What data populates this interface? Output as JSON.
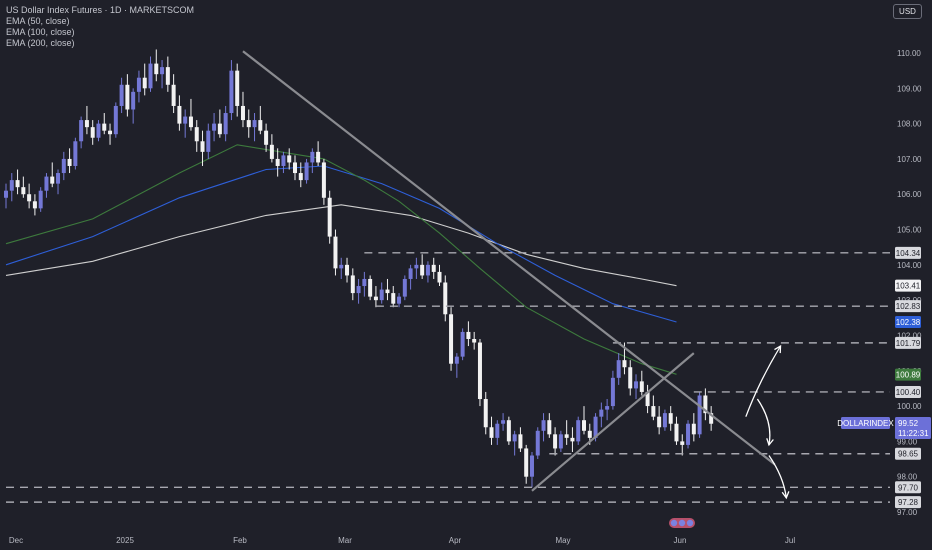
{
  "legend": {
    "title": "US Dollar Index Futures · 1D · MARKETSCOM",
    "ema50": "EMA (50, close)",
    "ema100": "EMA (100, close)",
    "ema200": "EMA (200, close)"
  },
  "currency": "USD",
  "colors": {
    "background": "#1f2029",
    "candle_up": "#7478d6",
    "candle_down": "#f2f2f2",
    "ema50": "#3d7a3d",
    "ema100": "#2e5fd8",
    "ema200": "#cfcfcf",
    "trendline": "#8a8b90",
    "level_line": "#a8a8b0",
    "arrow": "#ffffff"
  },
  "chart_data": {
    "type": "candlestick",
    "title": "US Dollar Index Futures · 1D · MARKETSCOM",
    "x_labels": [
      "Dec",
      "2025",
      "Feb",
      "Mar",
      "Apr",
      "May",
      "Jun",
      "Jul"
    ],
    "y_ticks": [
      110.0,
      109.0,
      108.0,
      107.0,
      106.0,
      105.0,
      104.0,
      103.0,
      102.0,
      101.0,
      100.0,
      99.0,
      98.0,
      97.0
    ],
    "y_tick_labels": [
      "110.00",
      "109.00",
      "108.00",
      "107.00",
      "106.00",
      "105.00",
      "104.00",
      "103.00",
      "102.00",
      "101.00",
      "100.00",
      "99.00",
      "98.00",
      "97.00"
    ],
    "ylim": [
      96.6,
      111.4
    ],
    "candles": [
      [
        105.9,
        106.3,
        105.6,
        106.1
      ],
      [
        106.1,
        106.6,
        105.8,
        106.4
      ],
      [
        106.4,
        106.7,
        106.0,
        106.2
      ],
      [
        106.2,
        106.5,
        105.9,
        106.0
      ],
      [
        106.0,
        106.3,
        105.6,
        105.8
      ],
      [
        105.8,
        106.0,
        105.4,
        105.6
      ],
      [
        105.6,
        106.2,
        105.5,
        106.1
      ],
      [
        106.1,
        106.6,
        105.9,
        106.5
      ],
      [
        106.5,
        106.9,
        106.2,
        106.3
      ],
      [
        106.3,
        106.7,
        106.0,
        106.6
      ],
      [
        106.6,
        107.2,
        106.4,
        107.0
      ],
      [
        107.0,
        107.3,
        106.6,
        106.8
      ],
      [
        106.8,
        107.6,
        106.7,
        107.5
      ],
      [
        107.5,
        108.2,
        107.3,
        108.1
      ],
      [
        108.1,
        108.5,
        107.7,
        107.9
      ],
      [
        107.9,
        108.1,
        107.4,
        107.6
      ],
      [
        107.6,
        108.1,
        107.5,
        108.0
      ],
      [
        108.0,
        108.3,
        107.7,
        107.8
      ],
      [
        107.8,
        108.0,
        107.4,
        107.7
      ],
      [
        107.7,
        108.6,
        107.6,
        108.5
      ],
      [
        108.5,
        109.3,
        108.3,
        109.1
      ],
      [
        109.1,
        109.4,
        108.2,
        108.4
      ],
      [
        108.4,
        109.0,
        108.0,
        108.9
      ],
      [
        108.9,
        109.5,
        108.6,
        109.3
      ],
      [
        109.3,
        109.7,
        108.8,
        109.0
      ],
      [
        109.0,
        109.9,
        108.9,
        109.7
      ],
      [
        109.7,
        110.1,
        109.2,
        109.4
      ],
      [
        109.4,
        109.8,
        109.0,
        109.6
      ],
      [
        109.6,
        109.9,
        108.9,
        109.1
      ],
      [
        109.1,
        109.4,
        108.3,
        108.5
      ],
      [
        108.5,
        108.8,
        107.8,
        108.0
      ],
      [
        108.0,
        108.4,
        107.6,
        108.2
      ],
      [
        108.2,
        108.7,
        107.8,
        107.9
      ],
      [
        107.9,
        108.1,
        107.2,
        107.5
      ],
      [
        107.5,
        107.8,
        106.8,
        107.2
      ],
      [
        107.2,
        108.0,
        107.0,
        107.8
      ],
      [
        107.8,
        108.3,
        107.5,
        108.0
      ],
      [
        108.0,
        108.4,
        107.6,
        107.7
      ],
      [
        107.7,
        108.5,
        107.5,
        108.3
      ],
      [
        108.3,
        109.8,
        108.1,
        109.5
      ],
      [
        109.5,
        109.7,
        108.2,
        108.5
      ],
      [
        108.5,
        108.9,
        107.9,
        108.1
      ],
      [
        108.1,
        108.4,
        107.6,
        107.9
      ],
      [
        107.9,
        108.3,
        107.5,
        108.1
      ],
      [
        108.1,
        108.5,
        107.7,
        107.8
      ],
      [
        107.8,
        108.0,
        107.2,
        107.4
      ],
      [
        107.4,
        107.7,
        106.9,
        107.0
      ],
      [
        107.0,
        107.3,
        106.5,
        106.8
      ],
      [
        106.8,
        107.2,
        106.6,
        107.1
      ],
      [
        107.1,
        107.3,
        106.7,
        106.9
      ],
      [
        106.9,
        107.1,
        106.4,
        106.6
      ],
      [
        106.6,
        106.9,
        106.2,
        106.4
      ],
      [
        106.4,
        107.0,
        106.3,
        106.9
      ],
      [
        106.9,
        107.3,
        106.6,
        107.2
      ],
      [
        107.2,
        107.5,
        106.8,
        106.9
      ],
      [
        106.9,
        107.0,
        105.7,
        105.9
      ],
      [
        105.9,
        106.1,
        104.6,
        104.8
      ],
      [
        104.8,
        105.0,
        103.7,
        103.9
      ],
      [
        103.9,
        104.2,
        103.6,
        104.0
      ],
      [
        104.0,
        104.2,
        103.5,
        103.7
      ],
      [
        103.7,
        103.9,
        103.0,
        103.2
      ],
      [
        103.2,
        103.6,
        102.9,
        103.4
      ],
      [
        103.4,
        103.8,
        103.1,
        103.6
      ],
      [
        103.6,
        103.7,
        103.0,
        103.1
      ],
      [
        103.1,
        103.4,
        102.8,
        103.0
      ],
      [
        103.0,
        103.5,
        102.9,
        103.3
      ],
      [
        103.3,
        103.6,
        103.0,
        103.2
      ],
      [
        103.2,
        103.4,
        102.8,
        102.9
      ],
      [
        102.9,
        103.2,
        102.8,
        103.1
      ],
      [
        103.1,
        103.7,
        103.0,
        103.6
      ],
      [
        103.6,
        104.0,
        103.3,
        103.9
      ],
      [
        103.9,
        104.2,
        103.6,
        104.0
      ],
      [
        104.0,
        104.3,
        103.6,
        103.7
      ],
      [
        103.7,
        104.1,
        103.5,
        104.0
      ],
      [
        104.0,
        104.2,
        103.6,
        103.8
      ],
      [
        103.8,
        104.0,
        103.4,
        103.5
      ],
      [
        103.5,
        103.7,
        102.4,
        102.6
      ],
      [
        102.6,
        102.8,
        101.0,
        101.2
      ],
      [
        101.2,
        101.5,
        100.8,
        101.4
      ],
      [
        101.4,
        102.2,
        101.3,
        102.1
      ],
      [
        102.1,
        102.4,
        101.7,
        101.9
      ],
      [
        101.9,
        102.1,
        101.6,
        101.8
      ],
      [
        101.8,
        101.9,
        100.0,
        100.2
      ],
      [
        100.2,
        100.4,
        99.2,
        99.4
      ],
      [
        99.4,
        99.7,
        98.9,
        99.1
      ],
      [
        99.1,
        99.6,
        98.9,
        99.5
      ],
      [
        99.5,
        99.8,
        99.3,
        99.6
      ],
      [
        99.6,
        99.7,
        98.9,
        99.0
      ],
      [
        99.0,
        99.3,
        98.6,
        99.2
      ],
      [
        99.2,
        99.4,
        98.7,
        98.8
      ],
      [
        98.8,
        98.9,
        97.8,
        98.0
      ],
      [
        98.0,
        98.7,
        97.7,
        98.6
      ],
      [
        98.6,
        99.4,
        98.5,
        99.3
      ],
      [
        99.3,
        99.8,
        99.0,
        99.6
      ],
      [
        99.6,
        99.8,
        99.1,
        99.2
      ],
      [
        99.2,
        99.4,
        98.6,
        98.8
      ],
      [
        98.8,
        99.3,
        98.7,
        99.2
      ],
      [
        99.2,
        99.6,
        98.9,
        99.1
      ],
      [
        99.1,
        99.4,
        98.7,
        99.0
      ],
      [
        99.0,
        99.7,
        98.9,
        99.6
      ],
      [
        99.6,
        100.0,
        99.2,
        99.3
      ],
      [
        99.3,
        99.5,
        98.9,
        99.1
      ],
      [
        99.1,
        99.8,
        99.0,
        99.7
      ],
      [
        99.7,
        100.1,
        99.4,
        99.9
      ],
      [
        99.9,
        100.2,
        99.6,
        100.0
      ],
      [
        100.0,
        101.0,
        99.9,
        100.8
      ],
      [
        100.8,
        101.5,
        100.6,
        101.3
      ],
      [
        101.3,
        101.8,
        100.9,
        101.1
      ],
      [
        101.1,
        101.3,
        100.3,
        100.5
      ],
      [
        100.5,
        100.9,
        100.2,
        100.7
      ],
      [
        100.7,
        101.0,
        100.3,
        100.4
      ],
      [
        100.4,
        100.6,
        99.8,
        100.0
      ],
      [
        100.0,
        100.3,
        99.6,
        99.7
      ],
      [
        99.7,
        100.0,
        99.2,
        99.4
      ],
      [
        99.4,
        99.9,
        99.3,
        99.8
      ],
      [
        99.8,
        100.0,
        99.3,
        99.5
      ],
      [
        99.5,
        99.7,
        98.9,
        99.0
      ],
      [
        99.0,
        99.2,
        98.6,
        98.9
      ],
      [
        98.9,
        99.6,
        98.8,
        99.5
      ],
      [
        99.5,
        99.8,
        99.0,
        99.2
      ],
      [
        99.2,
        100.4,
        99.1,
        100.3
      ],
      [
        100.3,
        100.5,
        99.6,
        99.8
      ],
      [
        99.8,
        100.0,
        99.3,
        99.5
      ]
    ],
    "ema50": [
      [
        0,
        104.6
      ],
      [
        15,
        105.3
      ],
      [
        30,
        106.6
      ],
      [
        40,
        107.4
      ],
      [
        55,
        107.0
      ],
      [
        62,
        106.4
      ],
      [
        68,
        105.8
      ],
      [
        75,
        104.9
      ],
      [
        82,
        103.9
      ],
      [
        90,
        102.8
      ],
      [
        100,
        101.9
      ],
      [
        110,
        101.2
      ],
      [
        116,
        100.9
      ]
    ],
    "ema100": [
      [
        0,
        104.0
      ],
      [
        15,
        104.8
      ],
      [
        30,
        105.9
      ],
      [
        45,
        106.7
      ],
      [
        55,
        106.8
      ],
      [
        65,
        106.3
      ],
      [
        75,
        105.6
      ],
      [
        85,
        104.6
      ],
      [
        95,
        103.7
      ],
      [
        105,
        102.9
      ],
      [
        116,
        102.38
      ]
    ],
    "ema200": [
      [
        0,
        103.7
      ],
      [
        15,
        104.1
      ],
      [
        30,
        104.8
      ],
      [
        45,
        105.4
      ],
      [
        58,
        105.7
      ],
      [
        70,
        105.4
      ],
      [
        80,
        104.9
      ],
      [
        90,
        104.3
      ],
      [
        100,
        103.9
      ],
      [
        110,
        103.6
      ],
      [
        116,
        103.41
      ]
    ],
    "trendlines": [
      {
        "from": [
          41,
          110.05
        ],
        "to": [
          133,
          98.35
        ]
      },
      {
        "from": [
          91,
          97.6
        ],
        "to": [
          119,
          101.5
        ]
      }
    ],
    "levels": [
      {
        "value": 104.34,
        "from": 62,
        "label": "104.34"
      },
      {
        "value": 102.83,
        "from": 64,
        "label": "102.83"
      },
      {
        "value": 101.79,
        "from": 105,
        "label": "101.79"
      },
      {
        "value": 100.4,
        "from": 119,
        "label": "100.40"
      },
      {
        "value": 98.65,
        "from": 94,
        "label": "98.65"
      },
      {
        "value": 97.7,
        "from": 0,
        "label": "97.70"
      },
      {
        "value": 97.28,
        "from": 0,
        "label": "97.28"
      }
    ],
    "price_badges": [
      {
        "label": "104.34",
        "value": 104.34,
        "bg": "#d8d9de",
        "fg": "#1f2029"
      },
      {
        "label": "103.41",
        "value": 103.41,
        "bg": "#f2f2f4",
        "fg": "#1f2029"
      },
      {
        "label": "102.83",
        "value": 102.83,
        "bg": "#d8d9de",
        "fg": "#1f2029"
      },
      {
        "label": "102.38",
        "value": 102.38,
        "bg": "#2e5fd8",
        "fg": "#ffffff"
      },
      {
        "label": "101.79",
        "value": 101.79,
        "bg": "#d8d9de",
        "fg": "#1f2029"
      },
      {
        "label": "100.89",
        "value": 100.89,
        "bg": "#3d7a3d",
        "fg": "#ffffff"
      },
      {
        "label": "100.40",
        "value": 100.4,
        "bg": "#d8d9de",
        "fg": "#1f2029"
      },
      {
        "label": "98.65",
        "value": 98.65,
        "bg": "#d8d9de",
        "fg": "#1f2029"
      },
      {
        "label": "97.70",
        "value": 97.7,
        "bg": "#d8d9de",
        "fg": "#1f2029"
      },
      {
        "label": "97.28",
        "value": 97.28,
        "bg": "#d8d9de",
        "fg": "#1f2029"
      }
    ],
    "current": {
      "symbol": "DOLLARINDEX",
      "price": "99.52",
      "countdown": "11:22:31",
      "value": 99.52,
      "bg": "#6c70d8"
    },
    "annotations": {
      "arrow_up": {
        "from": [
          128,
          99.7
        ],
        "to": [
          134,
          101.7
        ]
      },
      "arrow_down_1": {
        "from": [
          130,
          100.2
        ],
        "to": [
          132,
          98.9
        ]
      },
      "arrow_down_2": {
        "from": [
          132,
          98.6
        ],
        "to": [
          135,
          97.4
        ]
      }
    }
  }
}
